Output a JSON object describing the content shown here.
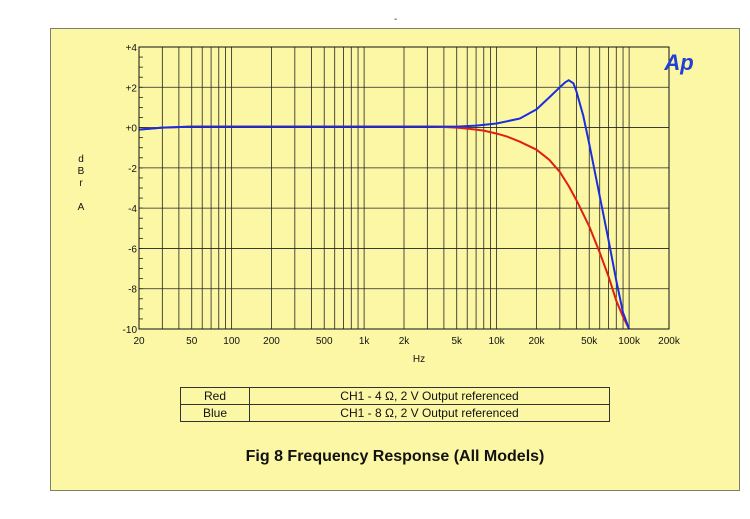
{
  "figure": {
    "stray_mark": "-",
    "caption": "Fig 8 Frequency Response (All Models)",
    "logo_text": "Ap",
    "logo_color": "#1f3fd6"
  },
  "legend": {
    "rows": [
      {
        "name": "Red",
        "text": "CH1 - 4 Ω, 2 V Output referenced"
      },
      {
        "name": "Blue",
        "text": "CH1 - 8 Ω, 2 V Output referenced"
      }
    ]
  },
  "chart_data": {
    "type": "line",
    "xscale": "log",
    "xlim": [
      20,
      200000
    ],
    "ylim": [
      -10,
      4
    ],
    "xlabel": "Hz",
    "ylabel": "d B r  A",
    "x_ticks": [
      {
        "v": 20,
        "label": "20"
      },
      {
        "v": 50,
        "label": "50"
      },
      {
        "v": 100,
        "label": "100"
      },
      {
        "v": 200,
        "label": "200"
      },
      {
        "v": 500,
        "label": "500"
      },
      {
        "v": 1000,
        "label": "1k"
      },
      {
        "v": 2000,
        "label": "2k"
      },
      {
        "v": 5000,
        "label": "5k"
      },
      {
        "v": 10000,
        "label": "10k"
      },
      {
        "v": 20000,
        "label": "20k"
      },
      {
        "v": 50000,
        "label": "50k"
      },
      {
        "v": 100000,
        "label": "100k"
      },
      {
        "v": 200000,
        "label": "200k"
      }
    ],
    "y_ticks": [
      {
        "v": 4,
        "label": "+4"
      },
      {
        "v": 2,
        "label": "+2"
      },
      {
        "v": 0,
        "label": "+0"
      },
      {
        "v": -2,
        "label": "-2"
      },
      {
        "v": -4,
        "label": "-4"
      },
      {
        "v": -6,
        "label": "-6"
      },
      {
        "v": -8,
        "label": "-8"
      },
      {
        "v": -10,
        "label": "-10"
      }
    ],
    "grid": true,
    "series": [
      {
        "name": "Red",
        "color": "#e02010",
        "x": [
          20,
          30,
          50,
          100,
          200,
          500,
          1000,
          2000,
          3000,
          4000,
          5000,
          6000,
          7000,
          8000,
          10000,
          12000,
          15000,
          20000,
          25000,
          30000,
          35000,
          40000,
          50000,
          60000,
          70000,
          80000,
          90000,
          100000
        ],
        "y": [
          -0.1,
          0.0,
          0.05,
          0.05,
          0.05,
          0.05,
          0.05,
          0.05,
          0.05,
          0.03,
          0.0,
          -0.05,
          -0.1,
          -0.15,
          -0.3,
          -0.45,
          -0.7,
          -1.1,
          -1.6,
          -2.2,
          -2.9,
          -3.6,
          -4.9,
          -6.2,
          -7.4,
          -8.6,
          -9.4,
          -10.0
        ]
      },
      {
        "name": "Blue",
        "color": "#1a2ee0",
        "x": [
          20,
          30,
          50,
          100,
          200,
          500,
          1000,
          2000,
          4000,
          5000,
          7000,
          10000,
          15000,
          20000,
          25000,
          30000,
          33000,
          35000,
          38000,
          40000,
          45000,
          50000,
          60000,
          70000,
          80000,
          90000,
          100000
        ],
        "y": [
          -0.1,
          0.0,
          0.05,
          0.05,
          0.05,
          0.05,
          0.05,
          0.05,
          0.05,
          0.05,
          0.1,
          0.2,
          0.45,
          0.9,
          1.5,
          2.0,
          2.25,
          2.35,
          2.2,
          1.8,
          0.6,
          -0.8,
          -3.4,
          -5.6,
          -7.6,
          -9.2,
          -10.0
        ]
      }
    ]
  }
}
